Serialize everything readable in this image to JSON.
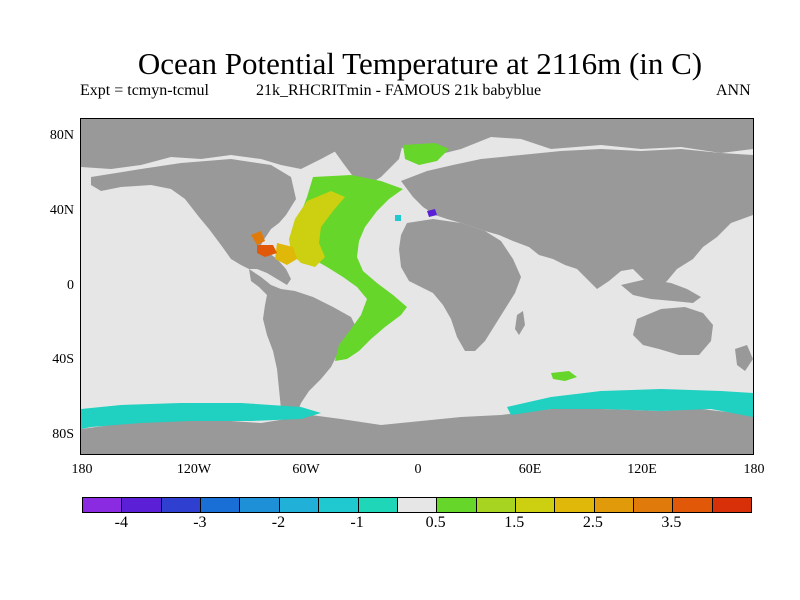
{
  "title": "Ocean Potential Temperature at 2116m (in C)",
  "subtitle": {
    "left": "Expt = tcmyn-tcmul",
    "middle": "21k_RHCRITmin - FAMOUS 21k babyblue",
    "right": "ANN"
  },
  "map": {
    "projection": "cylindrical-equidistant",
    "lon_range": [
      -180,
      180
    ],
    "lat_range": [
      -90,
      90
    ],
    "land_color": "#999999",
    "ocean_near_zero_color": "#e6e6e6",
    "lat_ticks": [
      {
        "value": 80,
        "label": "80N"
      },
      {
        "value": 40,
        "label": "40N"
      },
      {
        "value": 0,
        "label": "0"
      },
      {
        "value": -40,
        "label": "40S"
      },
      {
        "value": -80,
        "label": "80S"
      }
    ],
    "lon_ticks": [
      {
        "value": -180,
        "label": "180"
      },
      {
        "value": -120,
        "label": "120W"
      },
      {
        "value": -60,
        "label": "60W"
      },
      {
        "value": 0,
        "label": "0"
      },
      {
        "value": 60,
        "label": "60E"
      },
      {
        "value": 120,
        "label": "120E"
      },
      {
        "value": 180,
        "label": "180"
      }
    ]
  },
  "colorbar": {
    "colors": [
      "#8a2be2",
      "#5b1fd6",
      "#2f3fd0",
      "#1a6fd6",
      "#1e90d8",
      "#20b0d8",
      "#20c8d0",
      "#20d6b8",
      "#e6e6e6",
      "#66d62a",
      "#a6d420",
      "#ccd010",
      "#e0b80a",
      "#e09a0a",
      "#e07a0a",
      "#e05808",
      "#d83008"
    ],
    "labels": [
      {
        "index": 1,
        "text": "-4"
      },
      {
        "index": 3,
        "text": "-3"
      },
      {
        "index": 5,
        "text": "-2"
      },
      {
        "index": 7,
        "text": "-1"
      },
      {
        "index": 9,
        "text": "0.5"
      },
      {
        "index": 11,
        "text": "1.5"
      },
      {
        "index": 13,
        "text": "2.5"
      },
      {
        "index": 15,
        "text": "3.5"
      }
    ]
  }
}
